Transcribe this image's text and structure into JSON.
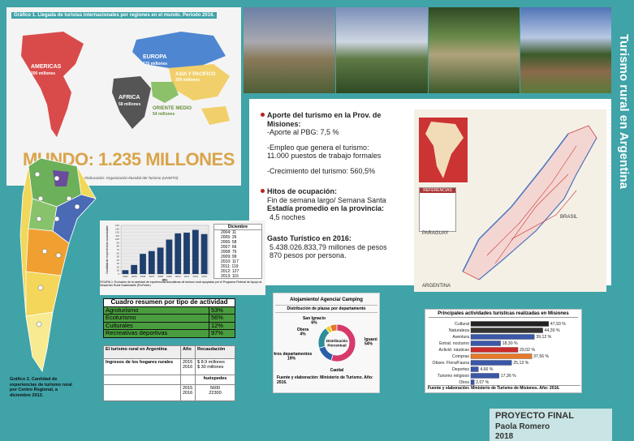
{
  "world": {
    "title": "Gráfico 1. Llegada de turistas internacionales por regiones en el mundo. Periodo 2016.",
    "regions": [
      {
        "name": "AMERICAS",
        "value": "200 millones"
      },
      {
        "name": "EUROPA",
        "value": "615 millones"
      },
      {
        "name": "ASIA Y PACIFICO",
        "value": "309 millones"
      },
      {
        "name": "AFRICA",
        "value": "58 millones"
      },
      {
        "name": "ORIENTE MEDIO",
        "value": "54 millones"
      }
    ],
    "total": "MUNDO: 1.235 MILLONES",
    "source": "Fuente y Elaboración: Organización Mundial del Turismo (UNWTO)"
  },
  "title_vertical": "Turismo rural en Argentina",
  "info": {
    "b1_head": "Aporte del turismo en la Prov. de Misiones:",
    "b1_l1": "-Aporte al PBG: 7,5 %",
    "b1_l2": "-Empleo que genera el turismo:",
    "b1_l3": "11.000 puestos de trabajo formales",
    "b1_l4": "-Crecimiento del turismo: 560,5%",
    "b2_head": "Hitos de ocupación:",
    "b2_l1": "Fin de semana largo/ Semana Santa",
    "b2_l2": "Estadía promedio en la provincia:",
    "b2_l3": "4,5 noches",
    "b3_head": "Gasto Turístico en 2016:",
    "b3_l1": "5.438.026.833,79 millones de pesos",
    "b3_l2": "870 pesos por persona."
  },
  "map": {
    "labels": [
      "PARAGUAY",
      "BRASIL",
      "ARGENTINA",
      "REFERENCIAS"
    ]
  },
  "arg_caption": "Gráfico 2. Cantidad de experiencias de turismo rural por Centro Regional, a diciembre 2013.",
  "yearchart": {
    "ylabel": "Cantidad de experiencias acumuladas",
    "xlabel": "Año",
    "legend_title": "Diciembre",
    "caption": "FIGURA 1: Evolución de la cantidad de experiencias asociativas de turismo rural apoyadas por el Programa Federal de Apoyo al Desarrollo Rural Sustentable (ProFeder)",
    "years": [
      "2004",
      "2005",
      "2006",
      "2007",
      "2008",
      "2009",
      "2010",
      "2011",
      "2012",
      "2013"
    ],
    "values": [
      11,
      26,
      58,
      66,
      76,
      99,
      117,
      119,
      127,
      115
    ],
    "legend": [
      "2004: 11",
      "2005: 26",
      "2006: 58",
      "2007: 66",
      "2008: 76",
      "2009: 99",
      "2010: 117",
      "2011: 119",
      "2012: 127",
      "2013: 115"
    ],
    "yticks": [
      "0",
      "10",
      "20",
      "30",
      "40",
      "50",
      "60",
      "70",
      "80",
      "90",
      "100",
      "110",
      "120",
      "130",
      "140"
    ]
  },
  "resumen": {
    "title": "Cuadro resumen por tipo de actividad",
    "rows": [
      {
        "label": "Agroturismo",
        "value": "53%"
      },
      {
        "label": "Ecoturismo",
        "value": "56%"
      },
      {
        "label": "Culturales",
        "value": "12%"
      },
      {
        "label": "Recreativas deportivas",
        "value": "97%"
      }
    ]
  },
  "rural": {
    "h1": "El turismo rural en Argentina",
    "h2": "Año",
    "h3": "Recaudación",
    "r1_label": "Ingresos de los hogares rurales",
    "r1_years": "2015\n2016",
    "r1_vals": "$ 8.9 millones\n$ 30 millones",
    "h4": "huéspedes",
    "r2_years": "2015\n2016",
    "r2_vals": "5600\n22300"
  },
  "donut": {
    "title": "Alojamiento/ Agencia/ Camping",
    "subtitle": "Distribución de plazas por departamento",
    "center": "Distribución Porcentual",
    "source": "Fuente y elaboración: Ministerio de Turismo. Año: 2016.",
    "slices": [
      {
        "name": "Iguazú",
        "value": 54,
        "label": "54%",
        "color": "#d63a6a"
      },
      {
        "name": "Capital",
        "value": 15,
        "label": "15%",
        "color": "#2a5ea8"
      },
      {
        "name": "Otros departamentos",
        "value": 19,
        "label": "19%",
        "color": "#2f8d9a"
      },
      {
        "name": "Obera",
        "value": 4,
        "label": "4%",
        "color": "#f0d02a"
      },
      {
        "name": "San Ignacio",
        "value": 6,
        "label": "6%",
        "color": "#e3772f"
      }
    ]
  },
  "chart_data": {
    "type": "bar",
    "title": "Principales actividades turísticas realizadas en Misiones",
    "source": "Fuente y elaboración: Ministerio de Turismo de Misiones. Año: 2016.",
    "categories": [
      "Cultural",
      "Naturaleza",
      "Aventura",
      "Entrat. nocturno",
      "Activid. náuticas",
      "Compras",
      "Obsev. Flora/Fauna",
      "Deportes",
      "Turismo religioso",
      "Otros"
    ],
    "values": [
      47.93,
      44.3,
      39.12,
      18.3,
      29.02,
      37.56,
      25.13,
      4.66,
      17.36,
      2.07
    ],
    "labels": [
      "47,93 %",
      "44,30 %",
      "39,12 %",
      "18,30 %",
      "29,02 %",
      "37,56 %",
      "25,13 %",
      "4,66 %",
      "17,36 %",
      "2,07 %"
    ],
    "colors": [
      "#222222",
      "#333333",
      "#3a57a8",
      "#3a57a8",
      "#cc2b2b",
      "#e67a2a",
      "#3a57a8",
      "#3a57a8",
      "#3a57a8",
      "#3a57a8"
    ],
    "xlim": [
      0,
      55
    ]
  },
  "footer": {
    "title": "PROYECTO FINAL",
    "author": "Paola Romero",
    "year": "2018"
  }
}
